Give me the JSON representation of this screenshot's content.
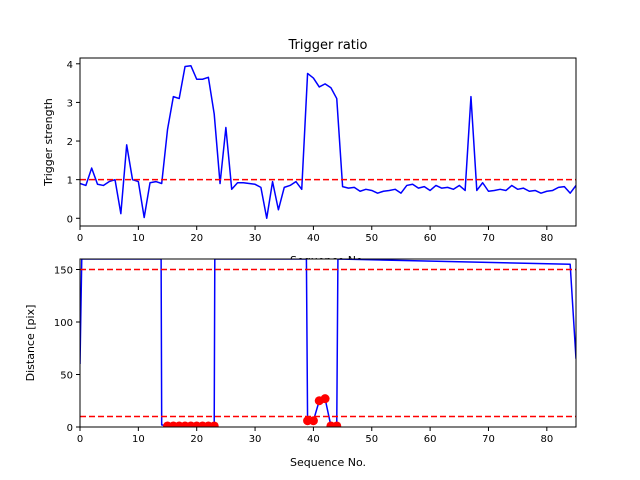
{
  "chart_data": [
    {
      "type": "line",
      "title": "Trigger ratio",
      "xlabel": "Sequence No.",
      "ylabel": "Trigger strength",
      "xlim": [
        0,
        85
      ],
      "ylim": [
        -0.2,
        4.15
      ],
      "xticks": [
        0,
        10,
        20,
        30,
        40,
        50,
        60,
        70,
        80
      ],
      "yticks": [
        0,
        1,
        2,
        3,
        4
      ],
      "grid": false,
      "line_color": "#0000ff",
      "threshold_color": "#ff0000",
      "thresholds": [
        1.0
      ],
      "series": [
        {
          "x": [
            0,
            1,
            2,
            3,
            4,
            5,
            6,
            7,
            8,
            9,
            10,
            11,
            12,
            13,
            14,
            15,
            16,
            17,
            18,
            19,
            20,
            21,
            22,
            23,
            24,
            25,
            26,
            27,
            28,
            29,
            30,
            31,
            32,
            33,
            34,
            35,
            36,
            37,
            38,
            39,
            40,
            41,
            42,
            43,
            44,
            45,
            46,
            47,
            48,
            49,
            50,
            51,
            52,
            53,
            54,
            55,
            56,
            57,
            58,
            59,
            60,
            61,
            62,
            63,
            64,
            65,
            66,
            67,
            68,
            69,
            70,
            71,
            72,
            73,
            74,
            75,
            76,
            77,
            78,
            79,
            80,
            81,
            82,
            83,
            84,
            85
          ],
          "values": [
            0.9,
            0.85,
            1.3,
            0.88,
            0.85,
            0.95,
            1.0,
            0.12,
            1.9,
            1.0,
            0.95,
            0.02,
            0.92,
            0.95,
            0.9,
            2.3,
            3.15,
            3.1,
            3.93,
            3.95,
            3.6,
            3.6,
            3.65,
            2.7,
            0.9,
            2.35,
            0.75,
            0.92,
            0.92,
            0.9,
            0.88,
            0.8,
            0.0,
            0.95,
            0.22,
            0.8,
            0.85,
            0.95,
            0.75,
            3.75,
            3.63,
            3.4,
            3.48,
            3.38,
            3.1,
            0.82,
            0.78,
            0.8,
            0.7,
            0.75,
            0.72,
            0.65,
            0.7,
            0.72,
            0.75,
            0.65,
            0.85,
            0.88,
            0.78,
            0.82,
            0.72,
            0.85,
            0.78,
            0.8,
            0.75,
            0.85,
            0.72,
            3.15,
            0.72,
            0.92,
            0.7,
            0.72,
            0.75,
            0.72,
            0.85,
            0.75,
            0.78,
            0.7,
            0.72,
            0.65,
            0.7,
            0.72,
            0.8,
            0.82,
            0.65,
            0.85
          ]
        }
      ]
    },
    {
      "type": "line",
      "title": "",
      "xlabel": "Sequence No.",
      "ylabel": "Distance [pix]",
      "xlim": [
        0,
        85
      ],
      "ylim": [
        0,
        160
      ],
      "xticks": [
        0,
        10,
        20,
        30,
        40,
        50,
        60,
        70,
        80
      ],
      "yticks": [
        0,
        50,
        100,
        150
      ],
      "grid": false,
      "line_color": "#0000ff",
      "threshold_color": "#ff0000",
      "marker_color": "#ff0000",
      "thresholds": [
        150,
        10
      ],
      "series": [
        {
          "x": [
            0,
            0.3,
            13.9,
            14,
            15,
            16,
            17,
            18,
            19,
            20,
            21,
            22,
            23,
            23.1,
            38.8,
            39,
            40,
            41,
            42,
            43,
            44,
            44.2,
            84,
            85
          ],
          "values": [
            60,
            160,
            160,
            2,
            1,
            1,
            1,
            1,
            1,
            1,
            1,
            1,
            1,
            160,
            160,
            6,
            6,
            25,
            27,
            1,
            1,
            160,
            155,
            65
          ]
        }
      ],
      "markers": {
        "x": [
          15,
          16,
          17,
          18,
          19,
          20,
          21,
          22,
          23,
          39,
          40,
          41,
          42,
          43,
          44
        ],
        "values": [
          1,
          1,
          1,
          1,
          1,
          1,
          1,
          1,
          1,
          6,
          6,
          25,
          27,
          1,
          1
        ]
      }
    }
  ]
}
